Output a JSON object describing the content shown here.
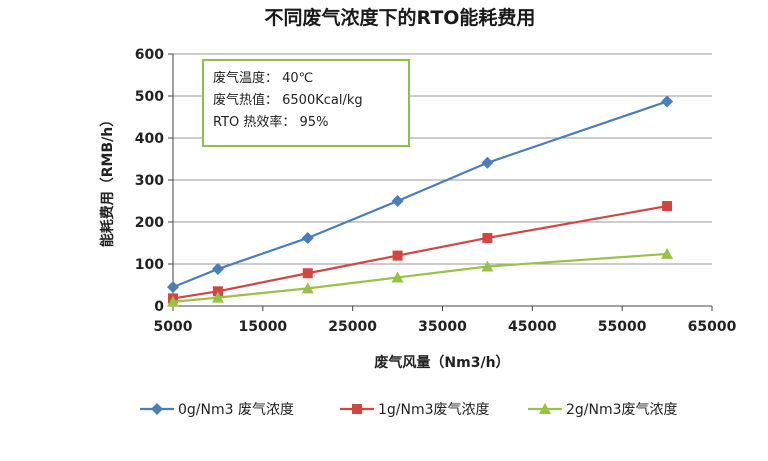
{
  "chart_data": {
    "type": "line",
    "title": "不同废气浓度下的RTO能耗费用",
    "xlabel": "废气风量（Nm3/h）",
    "ylabel": "能耗费用（RMB/h）",
    "xlim": [
      5000,
      65000
    ],
    "ylim": [
      0,
      600
    ],
    "xticks": [
      5000,
      15000,
      25000,
      35000,
      45000,
      55000,
      65000
    ],
    "yticks": [
      0,
      100,
      200,
      300,
      400,
      500,
      600
    ],
    "grid": true,
    "legend_position": "bottom",
    "series": [
      {
        "name": "0g/Nm3 废气浓度",
        "color": "#4a7ebb",
        "marker": "diamond",
        "x": [
          5000,
          10000,
          20000,
          30000,
          40000,
          60000
        ],
        "y": [
          45,
          88,
          162,
          250,
          341,
          487
        ]
      },
      {
        "name": "1g/Nm3废气浓度",
        "color": "#d24641",
        "marker": "square",
        "x": [
          5000,
          10000,
          20000,
          30000,
          40000,
          60000
        ],
        "y": [
          18,
          35,
          78,
          120,
          162,
          238
        ]
      },
      {
        "name": "2g/Nm3废气浓度",
        "color": "#98c245",
        "marker": "triangle",
        "x": [
          5000,
          10000,
          20000,
          30000,
          40000,
          60000
        ],
        "y": [
          10,
          20,
          42,
          68,
          94,
          124
        ]
      }
    ],
    "annotation": {
      "border_color": "#8cc04b",
      "lines": [
        "废气温度：  40℃",
        "废气热值：  6500Kcal/kg",
        "RTO 热效率：  95%"
      ]
    }
  }
}
